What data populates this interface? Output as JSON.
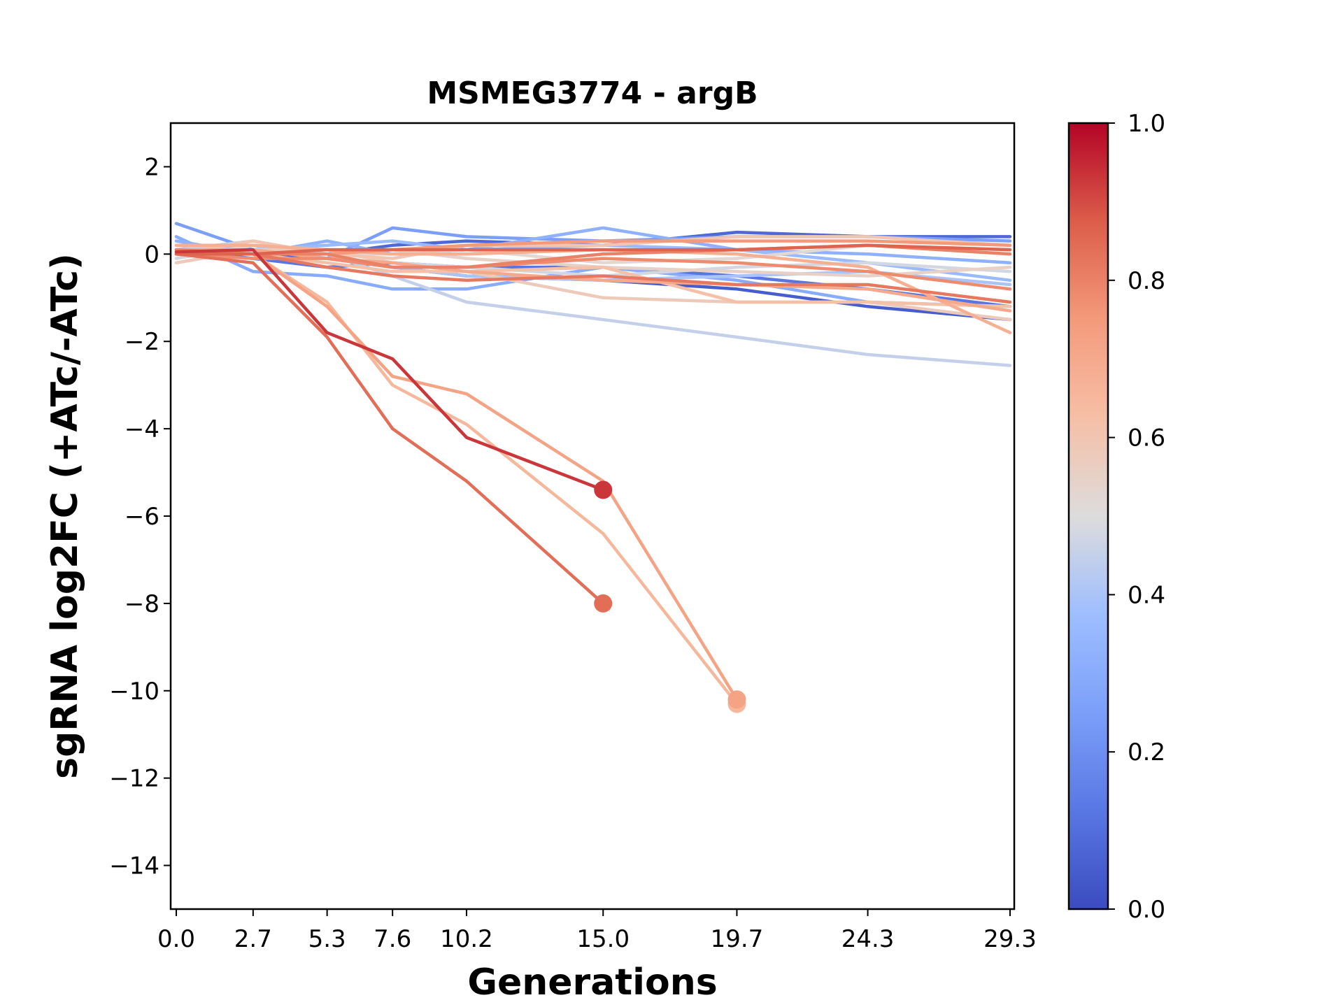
{
  "chart_data": {
    "type": "line",
    "title": "MSMEG3774 - argB",
    "xlabel": "Generations",
    "ylabel": "sgRNA log2FC (+ATc/-ATc)",
    "x_ticks": [
      0.0,
      2.7,
      5.3,
      7.6,
      10.2,
      15.0,
      19.7,
      24.3,
      29.3
    ],
    "x_tick_labels": [
      "0.0",
      "2.7",
      "5.3",
      "7.6",
      "10.2",
      "15.0",
      "19.7",
      "24.3",
      "29.3"
    ],
    "y_ticks": [
      2,
      0,
      -2,
      -4,
      -6,
      -8,
      -10,
      -12,
      -14
    ],
    "y_tick_labels": [
      "2",
      "0",
      "−2",
      "−4",
      "−6",
      "−8",
      "−10",
      "−12",
      "−14"
    ],
    "xlim": [
      -0.2,
      29.3
    ],
    "ylim": [
      -15,
      3
    ],
    "grid": false,
    "colorbar": {
      "range": [
        0.0,
        1.0
      ],
      "ticks": [
        0.0,
        0.2,
        0.4,
        0.6,
        0.8,
        1.0
      ],
      "tick_labels": [
        "0.0",
        "0.2",
        "0.4",
        "0.6",
        "0.8",
        "1.0"
      ],
      "colormap": "coolwarm"
    },
    "series": [
      {
        "c": 0.05,
        "y": [
          0.1,
          0.0,
          -0.1,
          -0.3,
          -0.5,
          -0.6,
          -0.8,
          -1.2,
          -1.5
        ]
      },
      {
        "c": 0.08,
        "y": [
          0.0,
          0.1,
          0.0,
          0.2,
          0.3,
          0.2,
          0.5,
          0.4,
          0.4
        ]
      },
      {
        "c": 0.12,
        "y": [
          0.1,
          -0.1,
          -0.3,
          -0.2,
          -0.3,
          -0.3,
          -0.5,
          -0.8,
          -1.2
        ]
      },
      {
        "c": 0.25,
        "y": [
          0.7,
          0.1,
          -0.1,
          0.6,
          0.4,
          0.3,
          0.4,
          0.4,
          0.3
        ]
      },
      {
        "c": 0.3,
        "y": [
          0.4,
          -0.4,
          -0.5,
          -0.8,
          -0.8,
          -0.3,
          -0.6,
          -1.1,
          -1.2
        ]
      },
      {
        "c": 0.32,
        "y": [
          0.3,
          0.0,
          0.3,
          0.0,
          0.1,
          0.6,
          0.1,
          0.0,
          -0.2
        ]
      },
      {
        "c": 0.36,
        "y": [
          0.2,
          0.1,
          0.2,
          0.3,
          0.1,
          0.2,
          0.1,
          -0.2,
          -0.6
        ]
      },
      {
        "c": 0.4,
        "y": [
          0.0,
          0.2,
          -0.1,
          -0.3,
          -0.5,
          -0.6,
          -0.5,
          -0.4,
          -0.7
        ]
      },
      {
        "c": 0.45,
        "y": [
          0.1,
          0.3,
          0.0,
          -0.5,
          -1.1,
          -1.5,
          -1.9,
          -2.3,
          -2.55
        ]
      },
      {
        "c": 0.48,
        "y": [
          -0.1,
          0.2,
          0.1,
          -0.2,
          -0.3,
          -0.5,
          -0.3,
          -0.2,
          -0.4
        ]
      },
      {
        "c": 0.52,
        "y": [
          0.0,
          0.1,
          0.0,
          0.0,
          0.1,
          -0.2,
          -0.1,
          0.2,
          0.1
        ]
      },
      {
        "c": 0.55,
        "y": [
          0.2,
          0.2,
          0.1,
          0.1,
          -0.1,
          -0.3,
          -0.4,
          -0.5,
          -0.3
        ]
      },
      {
        "c": 0.58,
        "y": [
          -0.2,
          0.1,
          0.1,
          -0.2,
          -0.4,
          -1.0,
          -1.1,
          -1.1,
          -1.5
        ]
      },
      {
        "c": 0.6,
        "y": [
          0.0,
          0.3,
          0.0,
          -0.1,
          0.2,
          0.2,
          0.4,
          0.4,
          0.2
        ]
      },
      {
        "c": 0.62,
        "y": [
          0.0,
          0.0,
          -0.2,
          -0.4,
          -0.4,
          -0.3,
          -1.1,
          -1.1,
          -1.2
        ]
      },
      {
        "c": 0.65,
        "y": [
          0.1,
          0.0,
          -1.1,
          -3.0,
          -3.9,
          -6.4,
          -10.3
        ]
      },
      {
        "c": 0.68,
        "y": [
          0.2,
          0.2,
          0.1,
          0.0,
          0.0,
          0.1,
          0.0,
          -0.3,
          -1.8
        ]
      },
      {
        "c": 0.7,
        "y": [
          0.1,
          0.1,
          -0.1,
          -0.2,
          -0.4,
          -0.6,
          -0.7,
          -0.8,
          -1.3
        ]
      },
      {
        "c": 0.72,
        "y": [
          0.0,
          0.0,
          -1.2,
          -2.8,
          -3.2,
          -5.2,
          -10.2
        ]
      },
      {
        "c": 0.75,
        "y": [
          0.1,
          0.0,
          0.0,
          0.1,
          0.2,
          0.3,
          0.3,
          0.3,
          0.2
        ]
      },
      {
        "c": 0.78,
        "y": [
          0.0,
          -0.1,
          -0.1,
          -0.3,
          -0.3,
          -0.1,
          -0.2,
          -0.4,
          -0.8
        ]
      },
      {
        "c": 0.8,
        "y": [
          0.1,
          0.0,
          0.0,
          -0.3,
          -0.3,
          0.0,
          0.1,
          0.2,
          0.0
        ]
      },
      {
        "c": 0.82,
        "y": [
          0.0,
          0.0,
          -0.3,
          -0.5,
          -0.6,
          -0.5,
          -0.7,
          -0.7,
          -1.1
        ]
      },
      {
        "c": 0.84,
        "y": [
          0.0,
          -0.2,
          -1.9,
          -4.0,
          -5.2,
          -8.0
        ]
      },
      {
        "c": 0.86,
        "y": [
          0.0,
          0.0,
          0.1,
          0.1,
          0.1,
          0.1,
          0.1,
          0.2,
          0.1
        ]
      },
      {
        "c": 0.93,
        "y": [
          0.05,
          0.1,
          -1.8,
          -2.4,
          -4.2,
          -5.4
        ]
      }
    ]
  }
}
